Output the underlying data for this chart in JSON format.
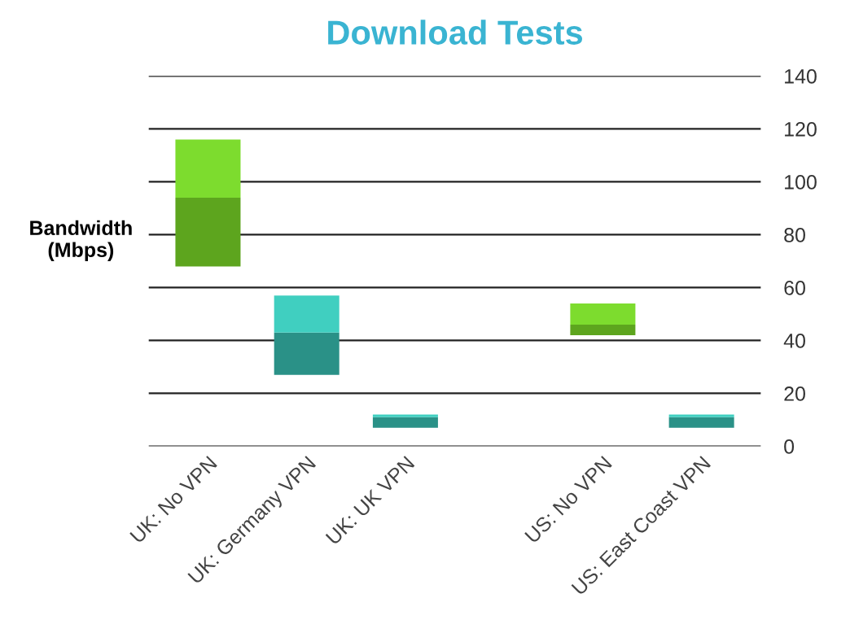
{
  "chart_data": {
    "type": "bar",
    "title": "Download Tests",
    "ylabel": "Bandwidth\n(Mbps)",
    "categories": [
      "UK: No VPN",
      "UK: Germany VPN",
      "UK: UK VPN",
      null,
      "US: No VPN",
      "US: East Coast VPN"
    ],
    "series": [
      {
        "colors": [
          "#5da51e",
          "#2a9187",
          "#2a9187",
          null,
          "#5da51e",
          "#2a9187"
        ],
        "base": [
          68,
          27,
          7,
          null,
          42,
          7
        ],
        "values": [
          26,
          16,
          4,
          null,
          4,
          4
        ]
      },
      {
        "colors": [
          "#7ddc2e",
          "#40cfc0",
          "#40cfc0",
          null,
          "#7ddc2e",
          "#40cfc0"
        ],
        "base": [
          94,
          43,
          11,
          null,
          46,
          11
        ],
        "values": [
          22,
          14,
          1,
          null,
          8,
          1
        ]
      }
    ],
    "ylim": [
      0,
      140
    ],
    "yticks": [
      0,
      20,
      40,
      60,
      80,
      100,
      120,
      140
    ],
    "grid": "y",
    "legend": false
  }
}
